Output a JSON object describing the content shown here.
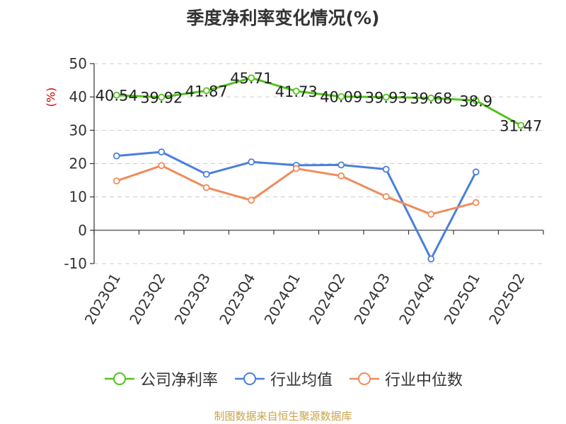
{
  "chart_data": {
    "type": "line",
    "title": "季度净利率变化情况(%)",
    "ylabel": "(%)",
    "categories": [
      "2023Q1",
      "2023Q2",
      "2023Q3",
      "2023Q4",
      "2024Q1",
      "2024Q2",
      "2024Q3",
      "2024Q4",
      "2025Q1",
      "2025Q2"
    ],
    "ylim": [
      -10,
      50
    ],
    "yticks": [
      -10,
      0,
      10,
      20,
      30,
      40,
      50
    ],
    "grid": true,
    "legend_position": "bottom",
    "series": [
      {
        "name": "公司净利率",
        "color": "#52c41a",
        "values": [
          40.54,
          39.92,
          41.87,
          45.71,
          41.73,
          40.09,
          39.93,
          39.68,
          38.9,
          31.47
        ],
        "labels": [
          "40.54",
          "39.92",
          "41.87",
          "45.71",
          "41.73",
          "40.09",
          "39.93",
          "39.68",
          "38.9",
          "31.47"
        ]
      },
      {
        "name": "行业均值",
        "color": "#4a7fdc",
        "values": [
          22.3,
          23.5,
          16.8,
          20.5,
          19.5,
          19.6,
          18.3,
          -8.6,
          17.5,
          null
        ]
      },
      {
        "name": "行业中位数",
        "color": "#f08c5a",
        "values": [
          14.8,
          19.4,
          12.8,
          9.0,
          18.5,
          16.3,
          10.1,
          4.8,
          8.3,
          null
        ]
      }
    ]
  },
  "footer": {
    "source": "制图数据来自恒生聚源数据库"
  }
}
